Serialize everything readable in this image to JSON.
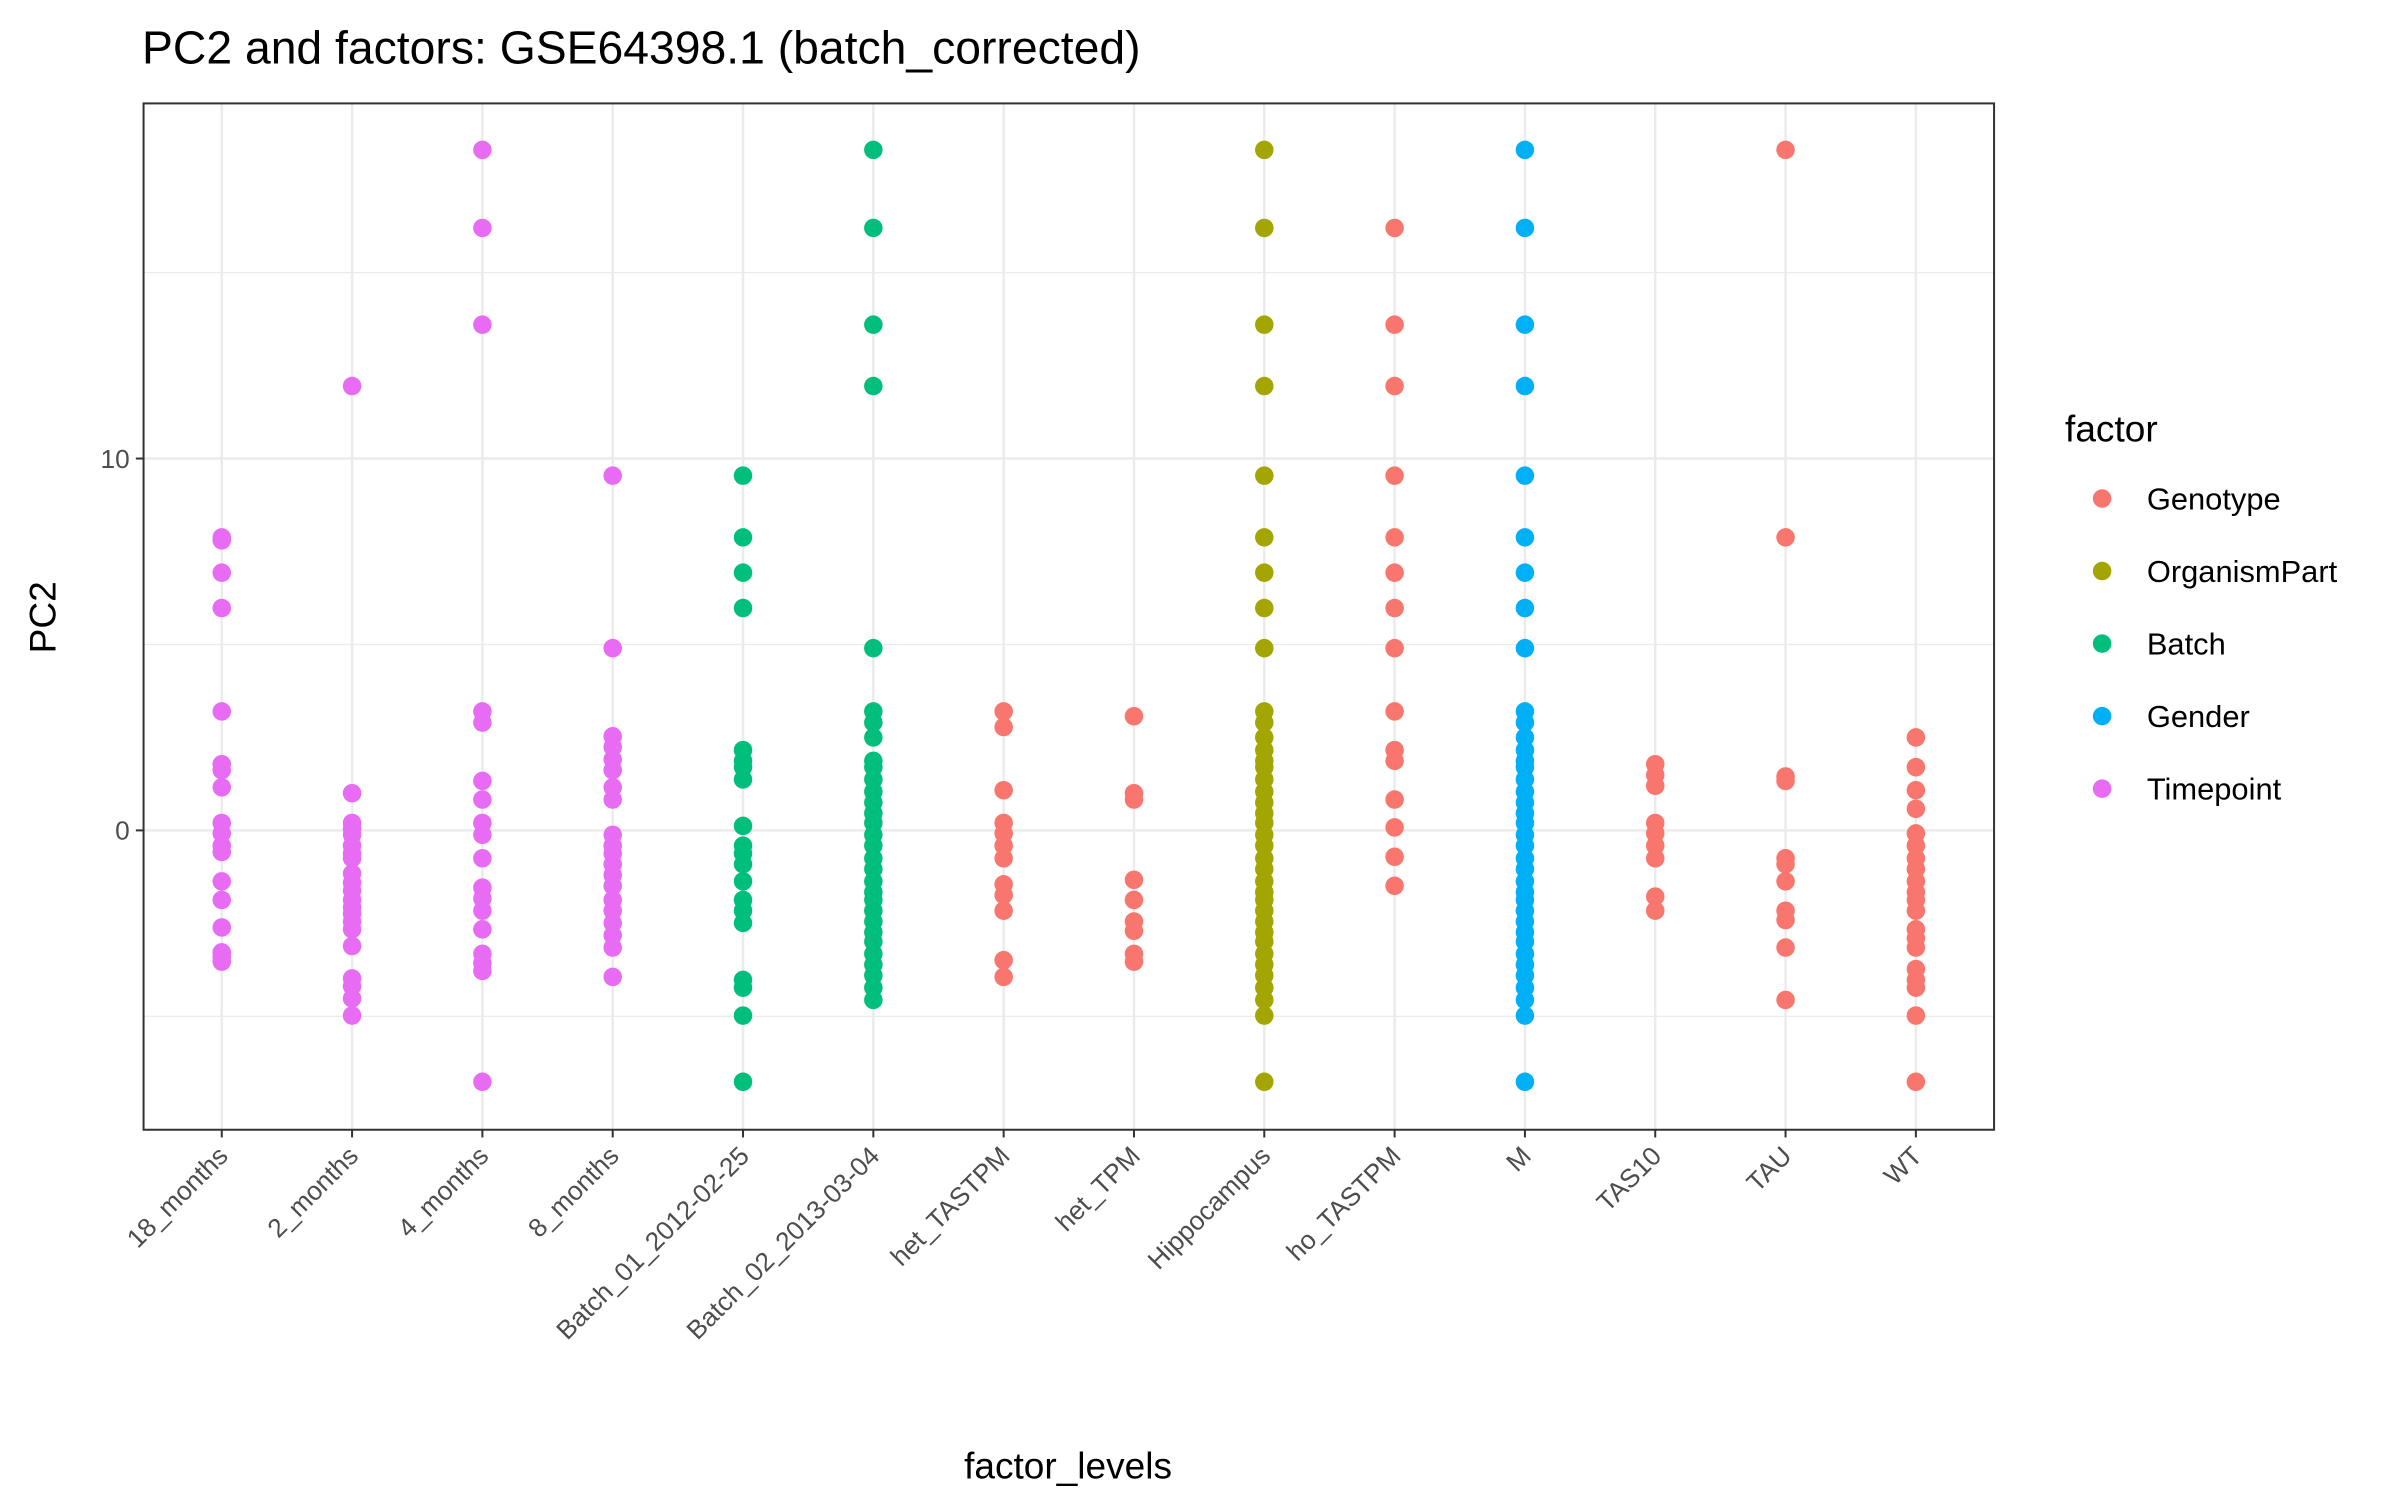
{
  "chart_data": {
    "type": "strip",
    "title": "PC2 and factors: GSE64398.1 (batch_corrected)",
    "x_label": "factor_levels",
    "y_label": "PC2",
    "legend_title": "factor",
    "legend": "right",
    "categories": [
      "18_months",
      "2_months",
      "4_months",
      "8_months",
      "Batch_01_2012-02-25",
      "Batch_02_2013-03-04",
      "het_TASTPM",
      "het_TPM",
      "Hippocampus",
      "ho_TASTPM",
      "M",
      "TAS10",
      "TAU",
      "WT"
    ],
    "ylim": [
      -8.05,
      19.55
    ],
    "yticks": [
      0,
      10
    ],
    "y_minor_grid": [
      -5,
      5,
      15
    ],
    "grid": true,
    "series": [
      {
        "name": "Genotype",
        "color": "#F8766D",
        "categories": [
          "het_TASTPM",
          "het_TPM",
          "ho_TASTPM",
          "TAS10",
          "TAU",
          "WT"
        ],
        "values": [
          [
            3.2,
            2.78,
            1.08,
            0.2,
            -0.08,
            -0.41,
            -0.75,
            -1.45,
            -1.74,
            -2.16,
            -3.49,
            -3.94
          ],
          [
            3.07,
            1.0,
            0.83,
            -1.33,
            -1.87,
            -2.45,
            -2.7,
            -3.32,
            -3.53
          ],
          [
            16.2,
            13.6,
            11.95,
            9.54,
            7.88,
            6.93,
            5.98,
            4.9,
            3.2,
            2.16,
            1.87,
            0.83,
            0.08,
            -0.71,
            -1.49
          ],
          [
            1.78,
            1.49,
            1.2,
            0.2,
            -0.08,
            -0.41,
            -0.75,
            -1.78,
            -2.16
          ],
          [
            18.3,
            7.88,
            1.45,
            1.33,
            -0.75,
            -0.91,
            -1.37,
            -2.16,
            -2.41,
            -3.15,
            -4.56
          ],
          [
            2.5,
            1.7,
            1.08,
            0.58,
            -0.08,
            -0.41,
            -0.75,
            -1.04,
            -1.37,
            -1.66,
            -1.87,
            -2.16,
            -2.66,
            -2.9,
            -3.15,
            -3.73,
            -4.02,
            -4.23,
            -4.98,
            -6.76
          ]
        ]
      },
      {
        "name": "OrganismPart",
        "color": "#A3A500",
        "categories": [
          "Hippocampus"
        ],
        "values": [
          [
            18.3,
            16.2,
            13.6,
            11.95,
            9.54,
            7.88,
            6.93,
            5.98,
            4.9,
            3.2,
            2.9,
            2.5,
            2.16,
            1.87,
            1.7,
            1.37,
            1.04,
            0.75,
            0.46,
            0.2,
            -0.12,
            -0.41,
            -0.75,
            -1.04,
            -1.37,
            -1.66,
            -1.87,
            -2.16,
            -2.45,
            -2.74,
            -2.99,
            -3.32,
            -3.61,
            -3.9,
            -4.23,
            -4.56,
            -4.98,
            -6.76
          ]
        ]
      },
      {
        "name": "Batch",
        "color": "#00BF7D",
        "categories": [
          "Batch_01_2012-02-25",
          "Batch_02_2013-03-04"
        ],
        "values": [
          [
            9.54,
            7.88,
            6.93,
            5.98,
            2.16,
            1.87,
            1.7,
            1.37,
            0.12,
            -0.41,
            -0.62,
            -0.91,
            -1.37,
            -1.87,
            -2.16,
            -2.49,
            -4.02,
            -4.23,
            -4.98,
            -6.76
          ],
          [
            18.3,
            16.2,
            13.6,
            11.95,
            4.9,
            3.2,
            2.9,
            2.5,
            1.87,
            1.7,
            1.37,
            1.04,
            0.75,
            0.46,
            0.2,
            -0.12,
            -0.41,
            -0.75,
            -1.04,
            -1.37,
            -1.66,
            -1.87,
            -2.16,
            -2.45,
            -2.74,
            -2.99,
            -3.32,
            -3.61,
            -3.9,
            -4.23,
            -4.56
          ]
        ]
      },
      {
        "name": "Gender",
        "color": "#00B0F6",
        "categories": [
          "M"
        ],
        "values": [
          [
            18.3,
            16.2,
            13.6,
            11.95,
            9.54,
            7.88,
            6.93,
            5.98,
            4.9,
            3.2,
            2.9,
            2.5,
            2.16,
            1.87,
            1.7,
            1.37,
            1.04,
            0.75,
            0.46,
            0.2,
            -0.12,
            -0.41,
            -0.75,
            -1.04,
            -1.37,
            -1.66,
            -1.87,
            -2.16,
            -2.45,
            -2.74,
            -2.99,
            -3.32,
            -3.61,
            -3.9,
            -4.23,
            -4.56,
            -4.98,
            -6.76
          ]
        ]
      },
      {
        "name": "Timepoint",
        "color": "#E76BF3",
        "categories": [
          "18_months",
          "2_months",
          "4_months",
          "8_months"
        ],
        "values": [
          [
            7.88,
            7.8,
            6.93,
            5.98,
            3.2,
            1.78,
            1.62,
            1.16,
            0.2,
            -0.08,
            -0.41,
            -0.58,
            -1.37,
            -1.87,
            -2.61,
            -3.28,
            -3.4,
            -3.53
          ],
          [
            11.95,
            1.0,
            0.2,
            0.04,
            -0.12,
            -0.41,
            -0.62,
            -0.75,
            -1.16,
            -1.41,
            -1.62,
            -1.87,
            -2.07,
            -2.24,
            -2.45,
            -2.66,
            -3.11,
            -3.98,
            -4.19,
            -4.52,
            -4.98
          ],
          [
            18.3,
            16.2,
            13.6,
            3.2,
            2.9,
            1.33,
            0.83,
            0.2,
            -0.12,
            -0.75,
            -1.54,
            -1.83,
            -2.16,
            -2.66,
            -3.32,
            -3.57,
            -3.78,
            -6.76
          ],
          [
            9.54,
            4.9,
            2.53,
            2.24,
            1.91,
            1.62,
            1.16,
            0.83,
            -0.12,
            -0.41,
            -0.62,
            -0.91,
            -1.2,
            -1.49,
            -1.87,
            -2.16,
            -2.49,
            -2.82,
            -3.15,
            -3.94
          ]
        ]
      }
    ]
  }
}
